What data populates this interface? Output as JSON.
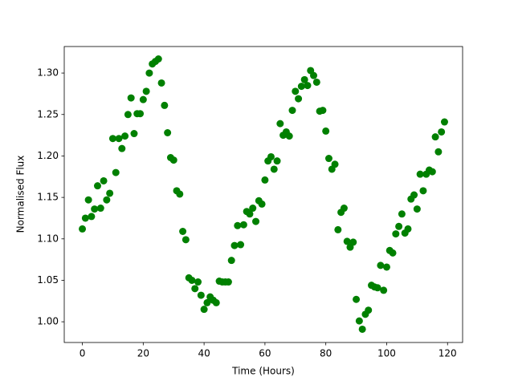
{
  "chart_data": {
    "type": "scatter",
    "xlabel": "Time (Hours)",
    "ylabel": "Normalised Flux",
    "color": "#008000",
    "x": [
      0,
      1,
      2,
      3,
      4,
      5,
      6,
      7,
      8,
      9,
      10,
      11,
      12,
      13,
      14,
      15,
      16,
      17,
      18,
      19,
      20,
      21,
      22,
      23,
      24,
      25,
      26,
      27,
      28,
      29,
      30,
      31,
      32,
      33,
      34,
      35,
      36,
      37,
      38,
      39,
      40,
      41,
      42,
      43,
      44,
      45,
      46,
      47,
      48,
      49,
      50,
      51,
      52,
      53,
      54,
      55,
      56,
      57,
      58,
      59,
      60,
      61,
      62,
      63,
      64,
      65,
      66,
      67,
      68,
      69,
      70,
      71,
      72,
      73,
      74,
      75,
      76,
      77,
      78,
      79,
      80,
      81,
      82,
      83,
      84,
      85,
      86,
      87,
      88,
      89,
      90,
      91,
      92,
      93,
      94,
      95,
      96,
      97,
      98,
      99,
      100,
      101,
      102,
      103,
      104,
      105,
      106,
      107,
      108,
      109,
      110,
      111,
      112,
      113,
      114,
      115,
      116,
      117,
      118,
      119
    ],
    "values": [
      1.112,
      1.125,
      1.147,
      1.127,
      1.136,
      1.164,
      1.137,
      1.17,
      1.147,
      1.155,
      1.221,
      1.18,
      1.221,
      1.209,
      1.224,
      1.25,
      1.27,
      1.227,
      1.251,
      1.251,
      1.268,
      1.278,
      1.3,
      1.311,
      1.314,
      1.317,
      1.288,
      1.261,
      1.228,
      1.198,
      1.195,
      1.158,
      1.154,
      1.109,
      1.099,
      1.053,
      1.05,
      1.04,
      1.048,
      1.032,
      1.015,
      1.023,
      1.03,
      1.026,
      1.023,
      1.049,
      1.048,
      1.048,
      1.048,
      1.074,
      1.092,
      1.116,
      1.093,
      1.117,
      1.133,
      1.13,
      1.137,
      1.121,
      1.146,
      1.142,
      1.171,
      1.194,
      1.199,
      1.184,
      1.194,
      1.239,
      1.225,
      1.229,
      1.224,
      1.255,
      1.278,
      1.269,
      1.284,
      1.292,
      1.285,
      1.303,
      1.297,
      1.289,
      1.254,
      1.255,
      1.23,
      1.197,
      1.184,
      1.19,
      1.111,
      1.132,
      1.137,
      1.097,
      1.09,
      1.096,
      1.027,
      1.001,
      0.991,
      1.009,
      1.014,
      1.044,
      1.042,
      1.041,
      1.068,
      1.038,
      1.066,
      1.086,
      1.083,
      1.106,
      1.115,
      1.13,
      1.107,
      1.112,
      1.148,
      1.153,
      1.136,
      1.178,
      1.158,
      1.178,
      1.183,
      1.181,
      1.223,
      1.205,
      1.229,
      1.241
    ],
    "xlim": [
      -5.95,
      124.95
    ],
    "xticks": [
      0,
      20,
      40,
      60,
      80,
      100,
      120
    ],
    "ylim": [
      0.975,
      1.332
    ],
    "yticks": [
      {
        "value": 1.0,
        "label": "1.00"
      },
      {
        "value": 1.05,
        "label": "1.05"
      },
      {
        "value": 1.1,
        "label": "1.10"
      },
      {
        "value": 1.15,
        "label": "1.15"
      },
      {
        "value": 1.2,
        "label": "1.20"
      },
      {
        "value": 1.25,
        "label": "1.25"
      },
      {
        "value": 1.3,
        "label": "1.30"
      }
    ]
  }
}
